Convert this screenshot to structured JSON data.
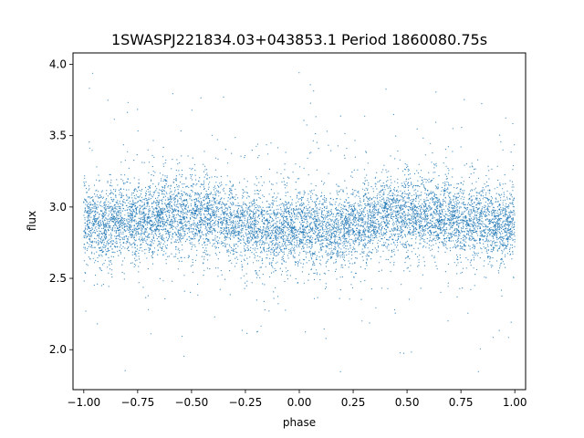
{
  "chart_data": {
    "type": "scatter",
    "title": "1SWASPJ221834.03+043853.1 Period 1860080.75s",
    "xlabel": "phase",
    "ylabel": "flux",
    "xlim": [
      -1.05,
      1.05
    ],
    "ylim": [
      1.72,
      4.08
    ],
    "xticks": [
      -1.0,
      -0.75,
      -0.5,
      -0.25,
      0.0,
      0.25,
      0.5,
      0.75,
      1.0
    ],
    "xtick_labels": [
      "−1.00",
      "−0.75",
      "−0.50",
      "−0.25",
      "0.00",
      "0.25",
      "0.50",
      "0.75",
      "1.00"
    ],
    "yticks": [
      2.0,
      2.5,
      3.0,
      3.5,
      4.0
    ],
    "ytick_labels": [
      "2.0",
      "2.5",
      "3.0",
      "3.5",
      "4.0"
    ],
    "grid": false,
    "point_color": "#1f77b4",
    "series": [
      {
        "points_summary": {
          "x_range": [
            -1.0,
            1.0
          ],
          "typical_flux_range": [
            2.55,
            3.2
          ],
          "median_flux": 2.88,
          "outlier_flux_range": [
            1.83,
            3.97
          ],
          "symmetric_about_phase_zero": true
        },
        "x": [
          -1.0,
          -0.95,
          -0.9,
          -0.85,
          -0.8,
          -0.75,
          -0.7,
          -0.65,
          -0.6,
          -0.55,
          -0.5,
          -0.45,
          -0.4,
          -0.35,
          -0.3,
          -0.25,
          -0.2,
          -0.15,
          -0.1,
          -0.05,
          0.0,
          0.05,
          0.1,
          0.15,
          0.2,
          0.25,
          0.3,
          0.35,
          0.4,
          0.45,
          0.5,
          0.55,
          0.6,
          0.65,
          0.7,
          0.75,
          0.8,
          0.85,
          0.9,
          0.95,
          1.0
        ],
        "y_median": [
          2.9,
          2.88,
          2.87,
          2.9,
          2.9,
          2.88,
          2.92,
          2.92,
          2.95,
          2.95,
          2.95,
          2.95,
          2.93,
          2.9,
          2.88,
          2.87,
          2.85,
          2.83,
          2.83,
          2.85,
          2.86,
          2.85,
          2.83,
          2.83,
          2.85,
          2.87,
          2.88,
          2.9,
          2.93,
          2.95,
          2.95,
          2.95,
          2.95,
          2.92,
          2.92,
          2.88,
          2.9,
          2.9,
          2.87,
          2.88,
          2.9
        ]
      }
    ]
  }
}
